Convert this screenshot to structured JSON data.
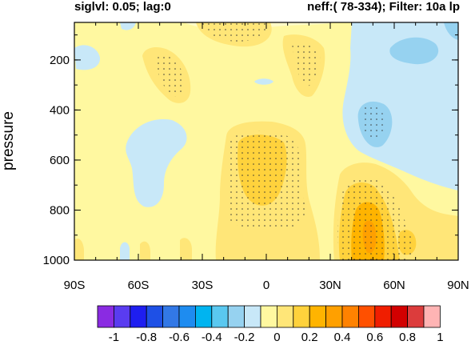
{
  "header": {
    "left": "siglvl: 0.05; lag:0",
    "right": "neff:( 78-334); Filter: 10a lp"
  },
  "chart_data": {
    "type": "heatmap",
    "ylabel": "pressure",
    "x_ticks": [
      "90S",
      "60S",
      "30S",
      "0",
      "30N",
      "60N",
      "90N"
    ],
    "x_values": [
      -90,
      -60,
      -30,
      0,
      30,
      60,
      90
    ],
    "xlim": [
      -90,
      90
    ],
    "y_ticks": [
      "200",
      "400",
      "600",
      "800",
      "1000"
    ],
    "y_values": [
      200,
      400,
      600,
      800,
      1000
    ],
    "ylim": [
      1000,
      50
    ],
    "y_inverted": true,
    "colorbar": {
      "labels": [
        "-1",
        "-0.8",
        "-0.6",
        "-0.4",
        "-0.2",
        "0",
        "0.2",
        "0.4",
        "0.6",
        "0.8",
        "1"
      ],
      "colors": [
        "#8a2be2",
        "#5a3cf0",
        "#1e1ef0",
        "#1e50e6",
        "#3278e6",
        "#1e8cf0",
        "#00b4f0",
        "#5ac8f0",
        "#96d2f0",
        "#c8e8f8",
        "#fff8a0",
        "#ffe678",
        "#ffd23c",
        "#ffb400",
        "#ffa000",
        "#ff8200",
        "#ff5000",
        "#f01e00",
        "#d20000",
        "#dc3c3c",
        "#ffb4b4"
      ]
    }
  }
}
